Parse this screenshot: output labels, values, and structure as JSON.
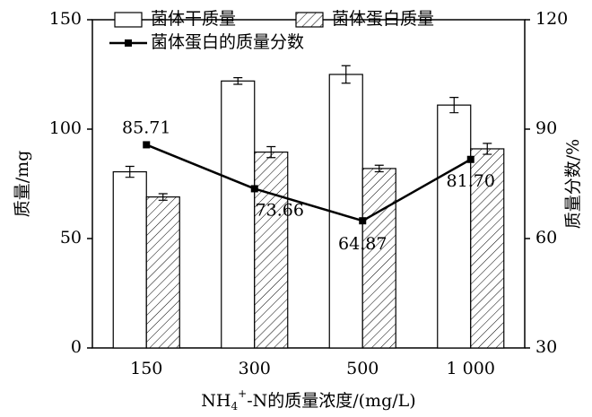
{
  "chart_data": {
    "type": "bar",
    "categories": [
      "150",
      "300",
      "500",
      "1 000"
    ],
    "x_label": [
      "NH",
      "4",
      "+",
      "-N的质量浓度/(mg/L)"
    ],
    "y_label": "质量/mg",
    "y2_label": "质量分数/%",
    "ylim": [
      0,
      150
    ],
    "yticks": [
      0,
      50,
      100,
      150
    ],
    "y2lim": [
      30,
      120
    ],
    "y2ticks": [
      30,
      60,
      90,
      120
    ],
    "legend": "top",
    "series": [
      {
        "name": "菌体干质量",
        "type": "bar",
        "color": "#ffffff",
        "values": [
          80.5,
          122,
          125,
          111
        ],
        "errors": [
          2.5,
          1.5,
          4,
          3.5
        ]
      },
      {
        "name": "菌体蛋白质量",
        "type": "bar",
        "color": "hatch",
        "values": [
          69,
          89.5,
          82,
          91
        ],
        "errors": [
          1.5,
          2.5,
          1.5,
          2.5
        ]
      },
      {
        "name": "菌体蛋白的质量分数",
        "type": "line",
        "axis": "y2",
        "color": "#000000",
        "values": [
          85.71,
          73.66,
          64.87,
          81.7
        ],
        "value_labels": [
          "85.71",
          "73.66",
          "64.87",
          "81.70"
        ]
      }
    ]
  }
}
